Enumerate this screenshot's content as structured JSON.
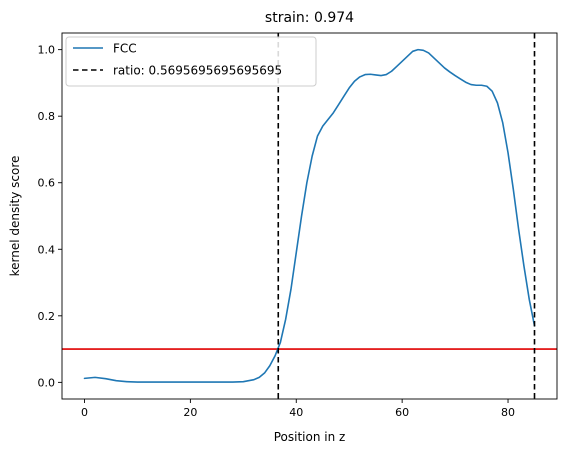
{
  "chart_data": {
    "type": "line",
    "title": "strain: 0.974",
    "xlabel": "Position in z",
    "ylabel": "kernel density score",
    "xlim": [
      -4.25,
      89.25
    ],
    "ylim": [
      -0.05,
      1.05
    ],
    "x_ticks": [
      0,
      20,
      40,
      60,
      80
    ],
    "x_tick_labels": [
      "0",
      "20",
      "40",
      "60",
      "80"
    ],
    "y_ticks": [
      0.0,
      0.2,
      0.4,
      0.6,
      0.8,
      1.0
    ],
    "y_tick_labels": [
      "0.0",
      "0.2",
      "0.4",
      "0.6",
      "0.8",
      "1.0"
    ],
    "grid": false,
    "legend_position": "upper-left",
    "series": [
      {
        "name": "FCC",
        "color": "#1f77b4",
        "x": [
          0,
          2,
          4,
          6,
          8,
          10,
          12,
          14,
          16,
          18,
          20,
          22,
          24,
          26,
          28,
          30,
          32,
          33,
          34,
          35,
          36,
          37,
          38,
          39,
          40,
          41,
          42,
          43,
          44,
          45,
          46,
          47,
          48,
          49,
          50,
          51,
          52,
          53,
          54,
          55,
          56,
          57,
          58,
          59,
          60,
          61,
          62,
          63,
          64,
          65,
          66,
          67,
          68,
          69,
          70,
          71,
          72,
          73,
          74,
          75,
          76,
          77,
          78,
          79,
          80,
          81,
          82,
          83,
          84,
          85
        ],
        "y": [
          0.012,
          0.015,
          0.011,
          0.005,
          0.002,
          0.001,
          0.001,
          0.001,
          0.001,
          0.001,
          0.001,
          0.001,
          0.001,
          0.001,
          0.001,
          0.002,
          0.008,
          0.015,
          0.028,
          0.05,
          0.08,
          0.12,
          0.19,
          0.28,
          0.39,
          0.5,
          0.6,
          0.68,
          0.74,
          0.77,
          0.79,
          0.81,
          0.835,
          0.86,
          0.885,
          0.905,
          0.918,
          0.925,
          0.926,
          0.924,
          0.922,
          0.925,
          0.935,
          0.95,
          0.965,
          0.98,
          0.995,
          1.0,
          0.998,
          0.99,
          0.975,
          0.96,
          0.945,
          0.933,
          0.922,
          0.912,
          0.902,
          0.895,
          0.893,
          0.893,
          0.89,
          0.875,
          0.84,
          0.78,
          0.69,
          0.58,
          0.46,
          0.35,
          0.25,
          0.17
        ]
      }
    ],
    "vertical_lines": [
      {
        "name": "ratio: 0.5695695695695695",
        "x": 36.6,
        "color": "#000000",
        "style": "dashed",
        "in_legend": true
      },
      {
        "x": 85,
        "color": "#000000",
        "style": "dashed",
        "in_legend": false
      }
    ],
    "horizontal_lines": [
      {
        "y": 0.1,
        "color": "#e00000",
        "style": "solid",
        "in_legend": false
      }
    ]
  }
}
